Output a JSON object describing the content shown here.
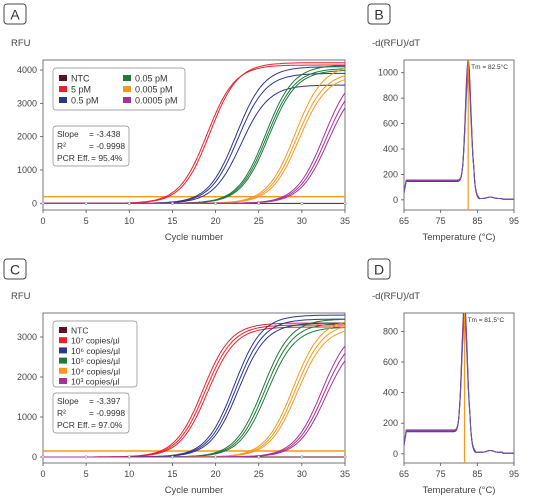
{
  "colors": {
    "ntc": "#5a1420",
    "c1": "#e8212c",
    "c2": "#2a3690",
    "c3": "#1e7a3a",
    "c4": "#f39a1e",
    "c5": "#a8309a",
    "threshold": "#f39a1e",
    "tm_line": "#f39a1e",
    "melt": "#5a5ab4",
    "axis": "#555555",
    "grid": "#e8e8e8"
  },
  "chart_data": [
    {
      "panel": "A",
      "type": "line",
      "ylabel": "RFU",
      "xlabel": "Cycle number",
      "xlim": [
        0,
        35
      ],
      "ylim": [
        -200,
        4300
      ],
      "xticks": [
        "0",
        "5",
        "10",
        "15",
        "20",
        "25",
        "30",
        "35"
      ],
      "yticks": [
        "0",
        "1000",
        "2000",
        "3000",
        "4000"
      ],
      "threshold": 200,
      "legend": [
        "NTC",
        "5 pM",
        "0.5 pM",
        "0.05 pM",
        "0.005 pM",
        "0.0005 pM"
      ],
      "annotation": [
        "Slope",
        "= -3.438",
        "R²",
        "= -0.9998",
        "PCR Eff.",
        "= 95.4%"
      ],
      "series": [
        {
          "name": "NTC",
          "ct": [],
          "plateau": [
            0
          ]
        },
        {
          "name": "5 pM",
          "ct": [
            14.2,
            14.5
          ],
          "plateau": [
            4150,
            4220
          ]
        },
        {
          "name": "0.5 pM",
          "ct": [
            17.6,
            17.9,
            18.4
          ],
          "plateau": [
            4100,
            3900,
            3550
          ]
        },
        {
          "name": "0.05 pM",
          "ct": [
            21.0,
            21.2,
            21.4
          ],
          "plateau": [
            4150,
            4050,
            4000
          ]
        },
        {
          "name": "0.005 pM",
          "ct": [
            24.4,
            24.7,
            25.0
          ],
          "plateau": [
            4150,
            3950,
            3850
          ]
        },
        {
          "name": "0.0005 pM",
          "ct": [
            27.8,
            28.1,
            28.4
          ],
          "plateau": [
            4050,
            3850,
            3700
          ]
        }
      ]
    },
    {
      "panel": "B",
      "type": "line",
      "ylabel": "-d(RFU)/dT",
      "xlabel": "Temperature (°C)",
      "xlim": [
        65,
        95
      ],
      "ylim": [
        -80,
        1100
      ],
      "xticks": [
        "65",
        "75",
        "85",
        "95"
      ],
      "yticks": [
        "0",
        "200",
        "400",
        "600",
        "800",
        "1000"
      ],
      "tm": 82.5,
      "tm_label": "Tm = 82.5°C",
      "peak": 960
    },
    {
      "panel": "C",
      "type": "line",
      "ylabel": "RFU",
      "xlabel": "Cycle number",
      "xlim": [
        0,
        35
      ],
      "ylim": [
        -150,
        3600
      ],
      "xticks": [
        "0",
        "5",
        "10",
        "15",
        "20",
        "25",
        "30",
        "35"
      ],
      "yticks": [
        "0",
        "1000",
        "2000",
        "3000"
      ],
      "threshold": 150,
      "legend": [
        "NTC",
        "10⁷ copies/µl",
        "10⁶ copies/µl",
        "10⁵ copies/µl",
        "10⁴ copies/µl",
        "10³ copies/µl"
      ],
      "annotation": [
        "Slope",
        "= -3.397",
        "R²",
        "= -0.9998",
        "PCR Eff.",
        "= 97.0%"
      ],
      "series": [
        {
          "name": "NTC",
          "ct": [],
          "plateau": [
            0
          ]
        },
        {
          "name": "10⁷ copies/µl",
          "ct": [
            13.6,
            13.9,
            14.2
          ],
          "plateau": [
            3350,
            3300,
            3250
          ]
        },
        {
          "name": "10⁶ copies/µl",
          "ct": [
            17.1,
            17.4,
            17.7
          ],
          "plateau": [
            3550,
            3450,
            3350
          ]
        },
        {
          "name": "10⁵ copies/µl",
          "ct": [
            20.5,
            20.8,
            21.1
          ],
          "plateau": [
            3450,
            3350,
            3250
          ]
        },
        {
          "name": "10⁴ copies/µl",
          "ct": [
            24.0,
            24.3,
            24.6
          ],
          "plateau": [
            3450,
            3350,
            3250
          ]
        },
        {
          "name": "10³ copies/µl",
          "ct": [
            27.4,
            27.7,
            28.0
          ],
          "plateau": [
            3300,
            3150,
            3000
          ]
        }
      ]
    },
    {
      "panel": "D",
      "type": "line",
      "ylabel": "-d(RFU)/dT",
      "xlabel": "Temperature (°C)",
      "xlim": [
        65,
        95
      ],
      "ylim": [
        -60,
        920
      ],
      "xticks": [
        "65",
        "75",
        "85",
        "95"
      ],
      "yticks": [
        "0",
        "200",
        "400",
        "600",
        "800"
      ],
      "tm": 81.5,
      "tm_label": "Tm = 81.5°C",
      "peak": 840
    }
  ]
}
